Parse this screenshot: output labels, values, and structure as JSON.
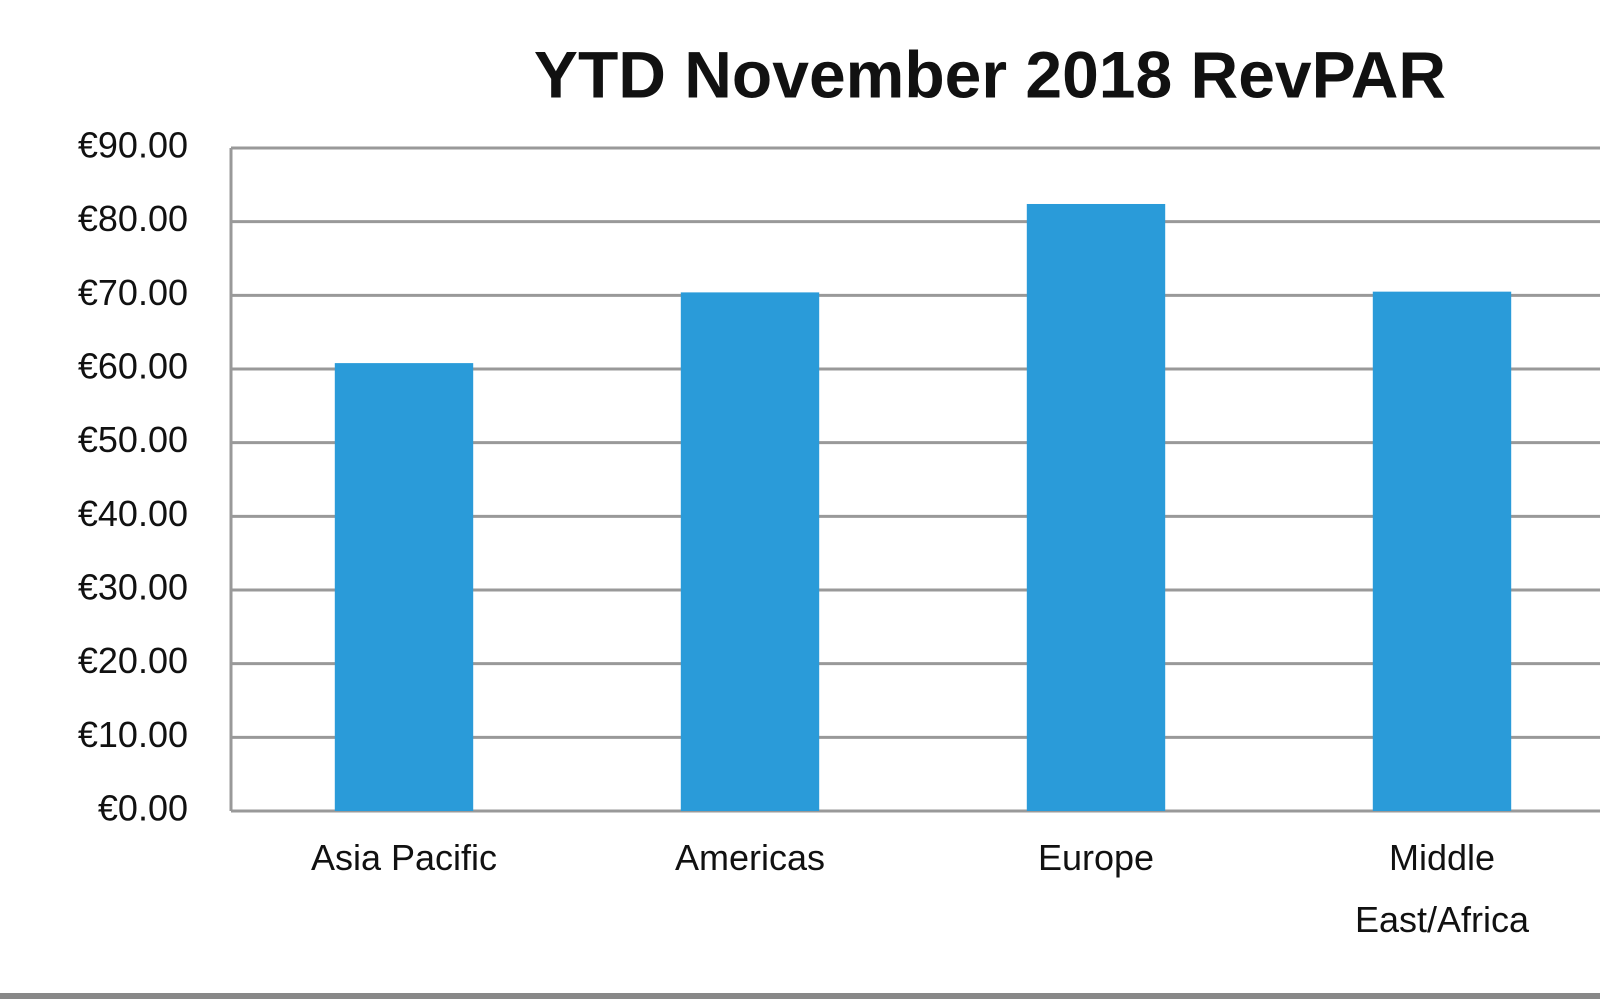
{
  "chart_data": {
    "type": "bar",
    "title": "YTD November 2018 RevPAR",
    "categories": [
      "Asia Pacific",
      "Americas",
      "Europe",
      "Middle East/Africa"
    ],
    "values": [
      60.8,
      70.4,
      82.4,
      70.5
    ],
    "color": "#2a9bd9",
    "ylim": [
      0,
      90
    ],
    "yticks": [
      {
        "value": 0,
        "label": "€0.00"
      },
      {
        "value": 10,
        "label": "€10.00"
      },
      {
        "value": 20,
        "label": "€20.00"
      },
      {
        "value": 30,
        "label": "€30.00"
      },
      {
        "value": 40,
        "label": "€40.00"
      },
      {
        "value": 50,
        "label": "€50.00"
      },
      {
        "value": 60,
        "label": "€60.00"
      },
      {
        "value": 70,
        "label": "€70.00"
      },
      {
        "value": 80,
        "label": "€80.00"
      },
      {
        "value": 90,
        "label": "€90.00"
      }
    ],
    "grid": true
  }
}
